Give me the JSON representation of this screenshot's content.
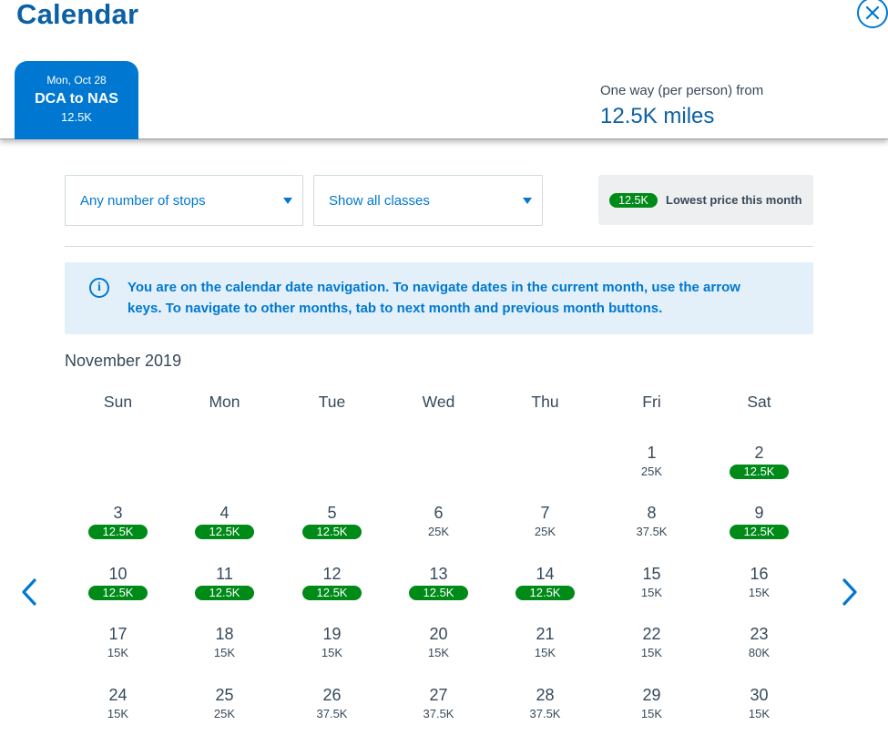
{
  "header": {
    "title": "Calendar",
    "close_icon": "close-circle-icon"
  },
  "trip_tab": {
    "date": "Mon, Oct 28",
    "route": "DCA to NAS",
    "price": "12.5K"
  },
  "fare_summary": {
    "caption": "One way (per person) from",
    "miles": "12.5K miles"
  },
  "filters": {
    "stops": "Any number of stops",
    "classes": "Show all classes"
  },
  "legend": {
    "badge": "12.5K",
    "text": "Lowest price this month"
  },
  "info": {
    "icon": "info-icon",
    "text": "You are on the calendar date navigation. To navigate dates in the current month, use the arrow keys. To navigate to other months, tab to next month and previous month buttons."
  },
  "calendar": {
    "month": "November 2019",
    "weekdays": [
      "Sun",
      "Mon",
      "Tue",
      "Wed",
      "Thu",
      "Fri",
      "Sat"
    ],
    "first_weekday_index": 5,
    "days": [
      {
        "day": "1",
        "price": "25K",
        "lowest": false
      },
      {
        "day": "2",
        "price": "12.5K",
        "lowest": true
      },
      {
        "day": "3",
        "price": "12.5K",
        "lowest": true
      },
      {
        "day": "4",
        "price": "12.5K",
        "lowest": true
      },
      {
        "day": "5",
        "price": "12.5K",
        "lowest": true
      },
      {
        "day": "6",
        "price": "25K",
        "lowest": false
      },
      {
        "day": "7",
        "price": "25K",
        "lowest": false
      },
      {
        "day": "8",
        "price": "37.5K",
        "lowest": false
      },
      {
        "day": "9",
        "price": "12.5K",
        "lowest": true
      },
      {
        "day": "10",
        "price": "12.5K",
        "lowest": true
      },
      {
        "day": "11",
        "price": "12.5K",
        "lowest": true
      },
      {
        "day": "12",
        "price": "12.5K",
        "lowest": true
      },
      {
        "day": "13",
        "price": "12.5K",
        "lowest": true
      },
      {
        "day": "14",
        "price": "12.5K",
        "lowest": true
      },
      {
        "day": "15",
        "price": "15K",
        "lowest": false
      },
      {
        "day": "16",
        "price": "15K",
        "lowest": false
      },
      {
        "day": "17",
        "price": "15K",
        "lowest": false
      },
      {
        "day": "18",
        "price": "15K",
        "lowest": false
      },
      {
        "day": "19",
        "price": "15K",
        "lowest": false
      },
      {
        "day": "20",
        "price": "15K",
        "lowest": false
      },
      {
        "day": "21",
        "price": "15K",
        "lowest": false
      },
      {
        "day": "22",
        "price": "15K",
        "lowest": false
      },
      {
        "day": "23",
        "price": "80K",
        "lowest": false
      },
      {
        "day": "24",
        "price": "15K",
        "lowest": false
      },
      {
        "day": "25",
        "price": "25K",
        "lowest": false
      },
      {
        "day": "26",
        "price": "37.5K",
        "lowest": false
      },
      {
        "day": "27",
        "price": "37.5K",
        "lowest": false
      },
      {
        "day": "28",
        "price": "37.5K",
        "lowest": false
      },
      {
        "day": "29",
        "price": "15K",
        "lowest": false
      },
      {
        "day": "30",
        "price": "15K",
        "lowest": false
      }
    ],
    "prev_icon": "chevron-left-icon",
    "next_icon": "chevron-right-icon"
  },
  "colors": {
    "brand_blue": "#0078d2",
    "title_blue": "#0b61a4",
    "lowest_green": "#008a18",
    "info_bg": "#e3f0f9",
    "text": "#36495a"
  }
}
